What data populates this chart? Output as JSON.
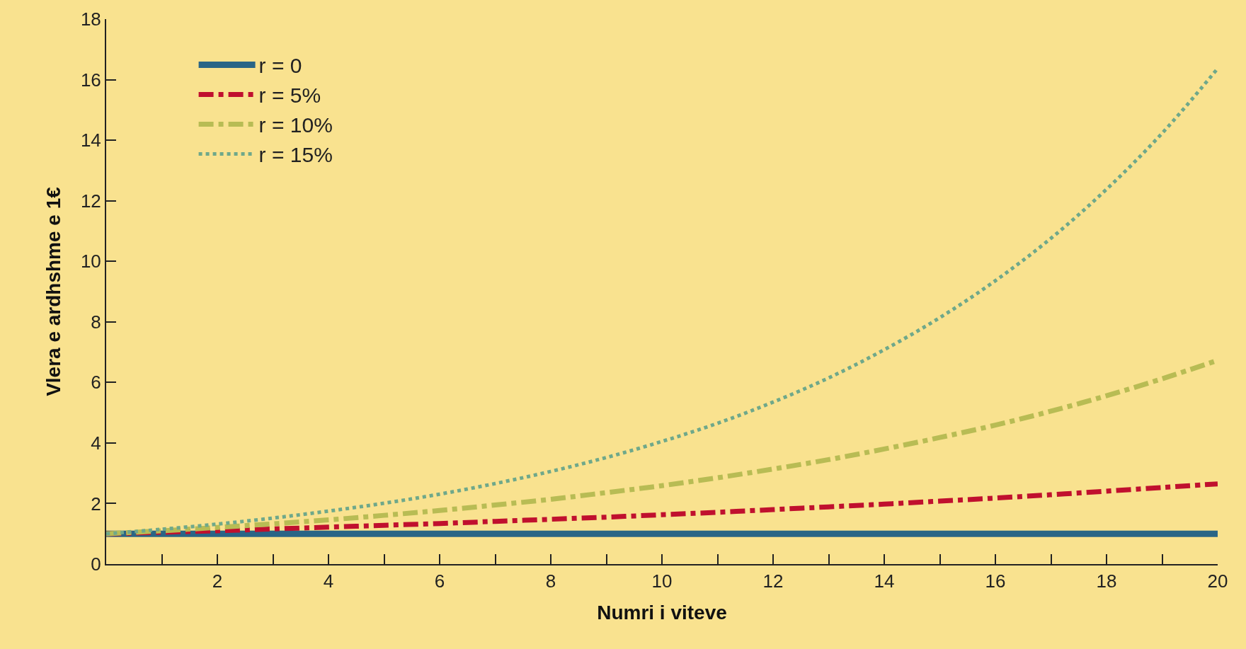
{
  "chart_data": {
    "type": "line",
    "xlabel": "Numri i viteve",
    "ylabel": "Vlera e ardhshme e 1€",
    "x": [
      0,
      1,
      2,
      3,
      4,
      5,
      6,
      7,
      8,
      9,
      10,
      11,
      12,
      13,
      14,
      15,
      16,
      17,
      18,
      19,
      20
    ],
    "series": [
      {
        "name": "r = 0",
        "color": "#2a6586",
        "line_style": "solid",
        "values": [
          1,
          1,
          1,
          1,
          1,
          1,
          1,
          1,
          1,
          1,
          1,
          1,
          1,
          1,
          1,
          1,
          1,
          1,
          1,
          1,
          1
        ]
      },
      {
        "name": "r = 5%",
        "color": "#c0102e",
        "line_style": "dashed",
        "values": [
          1,
          1.05,
          1.1,
          1.16,
          1.22,
          1.28,
          1.34,
          1.41,
          1.48,
          1.55,
          1.63,
          1.71,
          1.8,
          1.89,
          1.98,
          2.08,
          2.18,
          2.29,
          2.41,
          2.53,
          2.65
        ]
      },
      {
        "name": "r = 10%",
        "color": "#b8bc54",
        "line_style": "dashed",
        "values": [
          1,
          1.1,
          1.21,
          1.33,
          1.46,
          1.61,
          1.77,
          1.95,
          2.14,
          2.36,
          2.59,
          2.85,
          3.14,
          3.45,
          3.8,
          4.18,
          4.59,
          5.05,
          5.56,
          6.12,
          6.73
        ]
      },
      {
        "name": "r = 15%",
        "color": "#6fa88a",
        "line_style": "dotted",
        "values": [
          1,
          1.15,
          1.32,
          1.52,
          1.75,
          2.01,
          2.31,
          2.66,
          3.06,
          3.52,
          4.05,
          4.65,
          5.35,
          6.15,
          7.08,
          8.14,
          9.36,
          10.76,
          12.38,
          14.23,
          16.37
        ]
      }
    ],
    "xlim": [
      0,
      20
    ],
    "xticks": [
      {
        "value": 1,
        "label": null
      },
      2,
      {
        "value": 3,
        "label": null
      },
      4,
      {
        "value": 5,
        "label": null
      },
      6,
      {
        "value": 7,
        "label": null
      },
      8,
      {
        "value": 9,
        "label": null
      },
      10,
      {
        "value": 11,
        "label": null
      },
      12,
      {
        "value": 13,
        "label": null
      },
      14,
      {
        "value": 15,
        "label": null
      },
      16,
      {
        "value": 17,
        "label": null
      },
      18,
      {
        "value": 19,
        "label": null
      },
      20
    ],
    "ylim": [
      0,
      18
    ],
    "yticks": [
      0,
      2,
      4,
      6,
      8,
      10,
      12,
      14,
      16,
      18
    ],
    "grid": false,
    "legend": "top left",
    "marker": "none"
  }
}
